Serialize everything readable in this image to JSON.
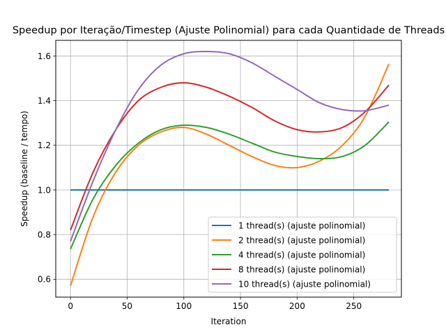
{
  "chart_data": {
    "type": "line",
    "title": "Speedup por Iteração/Timestep (Ajuste Polinomial) para cada Quantidade de Threads",
    "xlabel": "Iteration",
    "ylabel": "Speedup (baseline / tempo)",
    "xlim": [
      -13,
      292
    ],
    "ylim": [
      0.52,
      1.67
    ],
    "xticks": [
      0,
      50,
      100,
      150,
      200,
      250
    ],
    "yticks": [
      0.6,
      0.8,
      1.0,
      1.2,
      1.4,
      1.6
    ],
    "xtick_labels": [
      "0",
      "50",
      "100",
      "150",
      "200",
      "250"
    ],
    "ytick_labels": [
      "0.6",
      "0.8",
      "1.0",
      "1.2",
      "1.4",
      "1.6"
    ],
    "grid": true,
    "legend_position": "lower-right",
    "x": [
      0,
      20,
      40,
      60,
      80,
      100,
      120,
      140,
      160,
      180,
      200,
      220,
      240,
      260,
      281
    ],
    "series": [
      {
        "name": "1 thread(s) (ajuste polinomial)",
        "color": "#1f77b4",
        "values": [
          1.0,
          1.0,
          1.0,
          1.0,
          1.0,
          1.0,
          1.0,
          1.0,
          1.0,
          1.0,
          1.0,
          1.0,
          1.0,
          1.0,
          1.0
        ]
      },
      {
        "name": "2 thread(s) (ajuste polinomial)",
        "color": "#ff7f0e",
        "values": [
          0.57,
          0.88,
          1.08,
          1.2,
          1.26,
          1.28,
          1.25,
          1.2,
          1.15,
          1.11,
          1.1,
          1.13,
          1.2,
          1.33,
          1.565
        ]
      },
      {
        "name": "4 thread(s) (ajuste polinomial)",
        "color": "#2ca02c",
        "values": [
          0.735,
          0.96,
          1.11,
          1.21,
          1.27,
          1.29,
          1.28,
          1.25,
          1.21,
          1.17,
          1.15,
          1.14,
          1.15,
          1.2,
          1.305
        ]
      },
      {
        "name": "8 thread(s) (ajuste polinomial)",
        "color": "#d62728",
        "values": [
          0.82,
          1.08,
          1.27,
          1.4,
          1.46,
          1.48,
          1.46,
          1.42,
          1.37,
          1.31,
          1.27,
          1.26,
          1.28,
          1.35,
          1.47
        ]
      },
      {
        "name": "10 thread(s) (ajuste polinomial)",
        "color": "#9467bd",
        "values": [
          0.77,
          1.04,
          1.27,
          1.45,
          1.56,
          1.61,
          1.62,
          1.61,
          1.57,
          1.51,
          1.45,
          1.39,
          1.36,
          1.355,
          1.38
        ]
      }
    ]
  }
}
